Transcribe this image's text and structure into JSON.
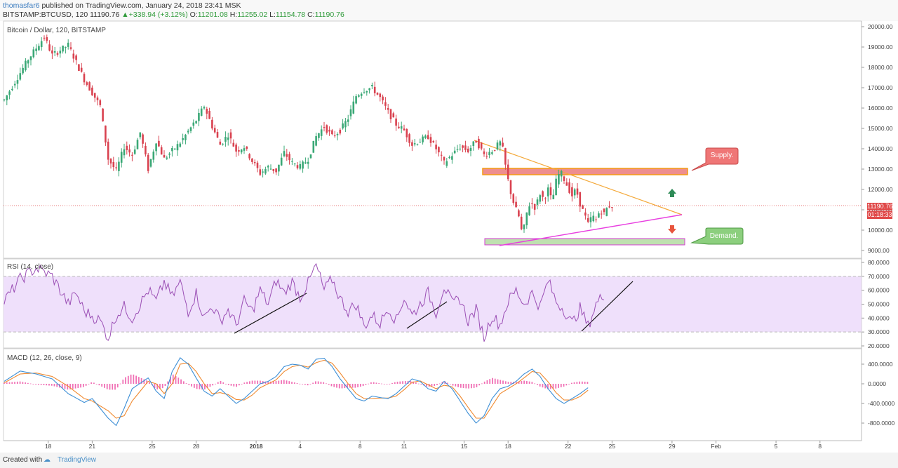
{
  "header": {
    "author": "thomasfar6",
    "published_text": " published on TradingView.com, January 24, 2018 23:41 MSK",
    "symbol": "BITSTAMP:BTCUSD, 120",
    "last": "11190.76",
    "change": "+338.94 (+3.12%)",
    "open_label": "O:",
    "open": "11201.08",
    "high_label": "H:",
    "high": "11255.02",
    "low_label": "L:",
    "low": "11154.78",
    "close_label": "C:",
    "close": "11190.76"
  },
  "main_pane": {
    "title": "Bitcoin / Dollar, 120, BITSTAMP"
  },
  "rsi_pane": {
    "title": "RSI (14, close)"
  },
  "macd_pane": {
    "title": "MACD (12, 26, close, 9)"
  },
  "price_badge": {
    "price": "11190.76",
    "countdown": "01:18:33"
  },
  "annotations": {
    "supply_label": "Supply.",
    "demand_label": "Demand."
  },
  "footer": {
    "created_with": "Created with",
    "brand": "TradingView"
  },
  "colors": {
    "up": "#3aa876",
    "down": "#d9414f",
    "rsi_line": "#9b4fb5",
    "rsi_band": "#efe0fb",
    "macd_line": "#3d8fd6",
    "signal_line": "#f08a30",
    "hist": "#f070b5",
    "supply_fill": "#ee8e8e",
    "supply_border": "#f39c12",
    "demand_fill": "#bfe0b0",
    "demand_border": "#d63bd6",
    "triangle_upper": "#f4a93a",
    "triangle_lower": "#e83ee0",
    "price_line": "#e05050"
  },
  "chart_data": [
    {
      "type": "candlestick",
      "title": "Bitcoin / Dollar, 120, BITSTAMP",
      "x_tick_labels": [
        "18",
        "21",
        "25",
        "28",
        "2018",
        "4",
        "8",
        "11",
        "15",
        "18",
        "22",
        "25",
        "29",
        "Feb",
        "5",
        "8"
      ],
      "y_tick_labels": [
        "20000.00",
        "19000.00",
        "18000.00",
        "17000.00",
        "16000.00",
        "15000.00",
        "14000.00",
        "13000.00",
        "12000.00",
        "11000.00",
        "10000.00",
        "9000.00"
      ],
      "ylim": [
        8800,
        20100
      ],
      "last_price": 11190.76,
      "path": [
        [
          0,
          16400
        ],
        [
          3,
          18400
        ],
        [
          5,
          19500
        ],
        [
          6,
          18600
        ],
        [
          8,
          19100
        ],
        [
          10,
          17400
        ],
        [
          12,
          16100
        ],
        [
          13,
          13500
        ],
        [
          14,
          12900
        ],
        [
          15,
          14100
        ],
        [
          16,
          13700
        ],
        [
          17,
          14800
        ],
        [
          18,
          13000
        ],
        [
          19,
          14400
        ],
        [
          20,
          13500
        ],
        [
          22,
          14300
        ],
        [
          24,
          15400
        ],
        [
          25,
          16100
        ],
        [
          26,
          15100
        ],
        [
          27,
          14200
        ],
        [
          28,
          14700
        ],
        [
          29,
          13900
        ],
        [
          30,
          14100
        ],
        [
          31,
          13400
        ],
        [
          32,
          12800
        ],
        [
          33,
          13100
        ],
        [
          34,
          12900
        ],
        [
          35,
          13800
        ],
        [
          36,
          13300
        ],
        [
          37,
          13100
        ],
        [
          38,
          13500
        ],
        [
          39,
          14600
        ],
        [
          40,
          15100
        ],
        [
          41,
          14600
        ],
        [
          42,
          14900
        ],
        [
          43,
          15500
        ],
        [
          44,
          16600
        ],
        [
          45,
          16900
        ],
        [
          46,
          17000
        ],
        [
          47,
          16500
        ],
        [
          48,
          15800
        ],
        [
          49,
          15200
        ],
        [
          50,
          14900
        ],
        [
          51,
          14200
        ],
        [
          52,
          14400
        ],
        [
          53,
          14600
        ],
        [
          54,
          14000
        ],
        [
          55,
          13300
        ],
        [
          56,
          13700
        ],
        [
          57,
          14100
        ],
        [
          58,
          13900
        ],
        [
          59,
          14400
        ],
        [
          60,
          13700
        ],
        [
          61,
          13900
        ],
        [
          62,
          14300
        ],
        [
          62.4,
          13900
        ],
        [
          62.8,
          12800
        ],
        [
          63.3,
          11900
        ],
        [
          63.8,
          11200
        ],
        [
          64.4,
          10600
        ],
        [
          64.8,
          9700
        ],
        [
          65.3,
          10800
        ],
        [
          65.8,
          11400
        ],
        [
          66.4,
          11100
        ],
        [
          67,
          11800
        ],
        [
          67.5,
          11500
        ],
        [
          68,
          12000
        ],
        [
          68.5,
          11400
        ],
        [
          69,
          12400
        ],
        [
          69.5,
          12900
        ],
        [
          70,
          12500
        ],
        [
          70.5,
          12100
        ],
        [
          71,
          11700
        ],
        [
          71.5,
          12000
        ],
        [
          72,
          11300
        ],
        [
          72.5,
          10800
        ],
        [
          73,
          10300
        ],
        [
          73.5,
          10700
        ],
        [
          74,
          10500
        ],
        [
          74.5,
          11000
        ],
        [
          75,
          10800
        ],
        [
          75.5,
          11200
        ],
        [
          76,
          11190
        ]
      ]
    },
    {
      "type": "line",
      "title": "RSI (14, close)",
      "y_tick_labels": [
        "80.0000",
        "70.0000",
        "60.0000",
        "50.0000",
        "40.0000",
        "30.0000",
        "20.0000"
      ],
      "ylim": [
        18,
        82
      ],
      "band": [
        30,
        70
      ],
      "path": [
        [
          0,
          52
        ],
        [
          2,
          68
        ],
        [
          4,
          76
        ],
        [
          6,
          70
        ],
        [
          8,
          50
        ],
        [
          9,
          58
        ],
        [
          10,
          45
        ],
        [
          12,
          38
        ],
        [
          13,
          26
        ],
        [
          14,
          42
        ],
        [
          15,
          48
        ],
        [
          16,
          40
        ],
        [
          18,
          60
        ],
        [
          19,
          52
        ],
        [
          20,
          66
        ],
        [
          21,
          55
        ],
        [
          22,
          66
        ],
        [
          23,
          45
        ],
        [
          24,
          58
        ],
        [
          25,
          40
        ],
        [
          26,
          49
        ],
        [
          27,
          38
        ],
        [
          28,
          46
        ],
        [
          29,
          35
        ],
        [
          30,
          52
        ],
        [
          31,
          45
        ],
        [
          32,
          60
        ],
        [
          33,
          50
        ],
        [
          34,
          67
        ],
        [
          35,
          58
        ],
        [
          36,
          66
        ],
        [
          37,
          55
        ],
        [
          38,
          65
        ],
        [
          39,
          78
        ],
        [
          40,
          60
        ],
        [
          41,
          68
        ],
        [
          42,
          54
        ],
        [
          43,
          45
        ],
        [
          44,
          50
        ],
        [
          45,
          34
        ],
        [
          46,
          42
        ],
        [
          47,
          36
        ],
        [
          48,
          48
        ],
        [
          49,
          38
        ],
        [
          50,
          55
        ],
        [
          51,
          42
        ],
        [
          52,
          50
        ],
        [
          53,
          58
        ],
        [
          54,
          44
        ],
        [
          55,
          63
        ],
        [
          56,
          50
        ],
        [
          57,
          54
        ],
        [
          58,
          38
        ],
        [
          59,
          46
        ],
        [
          60,
          26
        ],
        [
          61,
          42
        ],
        [
          62,
          35
        ],
        [
          63,
          52
        ],
        [
          64,
          60
        ],
        [
          65,
          50
        ],
        [
          66,
          58
        ],
        [
          67,
          48
        ],
        [
          68,
          67
        ],
        [
          69,
          52
        ],
        [
          70,
          46
        ],
        [
          71,
          36
        ],
        [
          72,
          47
        ],
        [
          73,
          34
        ],
        [
          74,
          50
        ],
        [
          75,
          57
        ]
      ]
    },
    {
      "type": "line",
      "title": "MACD (12, 26, close, 9)",
      "y_tick_labels": [
        "400.0000",
        "0.0000",
        "-400.0000",
        "-800.0000"
      ],
      "ylim": [
        -1000,
        650
      ],
      "series": [
        {
          "role": "macd",
          "path": [
            [
              0,
              50
            ],
            [
              2,
              260
            ],
            [
              4,
              200
            ],
            [
              6,
              100
            ],
            [
              8,
              -200
            ],
            [
              10,
              -380
            ],
            [
              11,
              -300
            ],
            [
              13,
              -700
            ],
            [
              14,
              -850
            ],
            [
              15,
              -500
            ],
            [
              16,
              -100
            ],
            [
              18,
              120
            ],
            [
              19,
              -150
            ],
            [
              20,
              -300
            ],
            [
              21,
              250
            ],
            [
              22,
              530
            ],
            [
              23,
              400
            ],
            [
              24,
              120
            ],
            [
              25,
              -150
            ],
            [
              26,
              -250
            ],
            [
              27,
              -100
            ],
            [
              28,
              -250
            ],
            [
              29,
              -400
            ],
            [
              30,
              -300
            ],
            [
              31,
              -150
            ],
            [
              32,
              0
            ],
            [
              33,
              50
            ],
            [
              34,
              150
            ],
            [
              35,
              350
            ],
            [
              36,
              400
            ],
            [
              37,
              380
            ],
            [
              38,
              300
            ],
            [
              39,
              500
            ],
            [
              40,
              520
            ],
            [
              41,
              350
            ],
            [
              42,
              100
            ],
            [
              43,
              -100
            ],
            [
              44,
              -300
            ],
            [
              45,
              -350
            ],
            [
              46,
              -250
            ],
            [
              47,
              -280
            ],
            [
              48,
              -300
            ],
            [
              49,
              -200
            ],
            [
              50,
              -50
            ],
            [
              51,
              100
            ],
            [
              52,
              50
            ],
            [
              53,
              -100
            ],
            [
              54,
              -150
            ],
            [
              55,
              50
            ],
            [
              56,
              -100
            ],
            [
              57,
              -350
            ],
            [
              58,
              -600
            ],
            [
              59,
              -800
            ],
            [
              60,
              -650
            ],
            [
              61,
              -300
            ],
            [
              62,
              -100
            ],
            [
              63,
              -50
            ],
            [
              64,
              50
            ],
            [
              65,
              200
            ],
            [
              66,
              300
            ],
            [
              67,
              150
            ],
            [
              68,
              -100
            ],
            [
              69,
              -300
            ],
            [
              70,
              -400
            ],
            [
              71,
              -300
            ],
            [
              72,
              -200
            ],
            [
              73,
              -80
            ]
          ]
        },
        {
          "role": "signal",
          "path": [
            [
              0,
              20
            ],
            [
              2,
              200
            ],
            [
              4,
              220
            ],
            [
              6,
              150
            ],
            [
              8,
              -50
            ],
            [
              10,
              -300
            ],
            [
              11,
              -350
            ],
            [
              13,
              -550
            ],
            [
              14,
              -700
            ],
            [
              15,
              -650
            ],
            [
              16,
              -350
            ],
            [
              18,
              50
            ],
            [
              19,
              0
            ],
            [
              20,
              -200
            ],
            [
              21,
              0
            ],
            [
              22,
              400
            ],
            [
              23,
              420
            ],
            [
              24,
              250
            ],
            [
              25,
              0
            ],
            [
              26,
              -200
            ],
            [
              27,
              -180
            ],
            [
              28,
              -220
            ],
            [
              29,
              -320
            ],
            [
              30,
              -330
            ],
            [
              31,
              -230
            ],
            [
              32,
              -80
            ],
            [
              33,
              0
            ],
            [
              34,
              80
            ],
            [
              35,
              250
            ],
            [
              36,
              350
            ],
            [
              37,
              380
            ],
            [
              38,
              340
            ],
            [
              39,
              430
            ],
            [
              40,
              480
            ],
            [
              41,
              420
            ],
            [
              42,
              220
            ],
            [
              43,
              0
            ],
            [
              44,
              -200
            ],
            [
              45,
              -300
            ],
            [
              46,
              -300
            ],
            [
              47,
              -290
            ],
            [
              48,
              -290
            ],
            [
              49,
              -250
            ],
            [
              50,
              -120
            ],
            [
              51,
              30
            ],
            [
              52,
              60
            ],
            [
              53,
              -20
            ],
            [
              54,
              -100
            ],
            [
              55,
              -30
            ],
            [
              56,
              -60
            ],
            [
              57,
              -250
            ],
            [
              58,
              -480
            ],
            [
              59,
              -700
            ],
            [
              60,
              -700
            ],
            [
              61,
              -450
            ],
            [
              62,
              -200
            ],
            [
              63,
              -100
            ],
            [
              64,
              0
            ],
            [
              65,
              120
            ],
            [
              66,
              250
            ],
            [
              67,
              220
            ],
            [
              68,
              40
            ],
            [
              69,
              -180
            ],
            [
              70,
              -330
            ],
            [
              71,
              -330
            ],
            [
              72,
              -260
            ],
            [
              73,
              -130
            ]
          ]
        }
      ]
    }
  ]
}
